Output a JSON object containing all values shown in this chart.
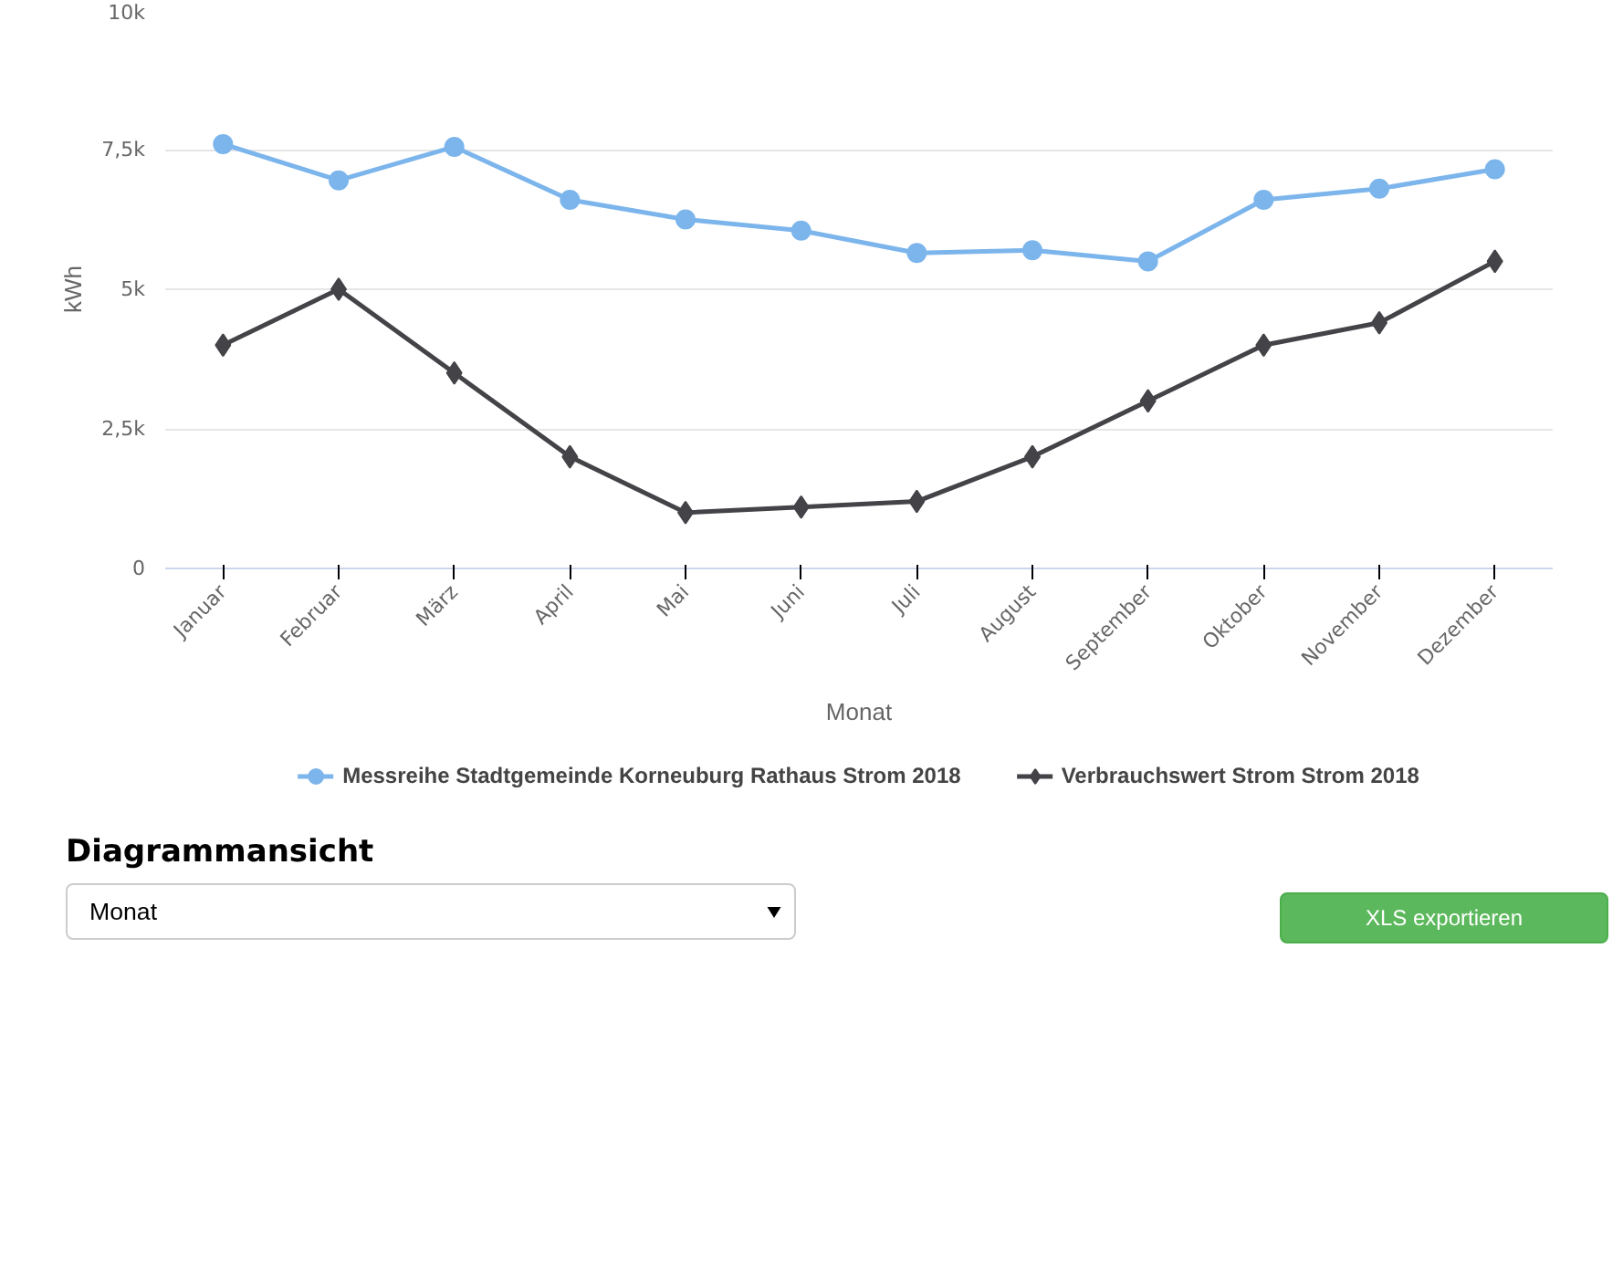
{
  "chart_data": {
    "type": "line",
    "xlabel": "Monat",
    "ylabel": "kWh",
    "categories": [
      "Januar",
      "Februar",
      "März",
      "April",
      "Mai",
      "Juni",
      "Juli",
      "August",
      "September",
      "Oktober",
      "November",
      "Dezember"
    ],
    "series": [
      {
        "name": "Messreihe Stadtgemeinde Korneuburg Rathaus Strom 2018",
        "color": "#7cb5ec",
        "marker": "circle",
        "values": [
          7600,
          6950,
          7550,
          6600,
          6250,
          6050,
          5650,
          5700,
          5500,
          6600,
          6800,
          7150
        ]
      },
      {
        "name": "Verbrauchswert Strom Strom 2018",
        "color": "#434348",
        "marker": "diamond",
        "values": [
          4000,
          5000,
          3500,
          2000,
          1000,
          1100,
          1200,
          2000,
          3000,
          4000,
          4400,
          5500
        ]
      }
    ],
    "ylim": [
      0,
      10000
    ],
    "yticks": [
      0,
      {
        "value": 2500,
        "label": "2,5k"
      },
      {
        "value": 5000,
        "label": "5k"
      },
      {
        "value": 7500,
        "label": "7,5k"
      },
      {
        "value": 10000,
        "label": "10k"
      }
    ],
    "grid": "y",
    "legend": "bottom",
    "line_style": "solid",
    "annotations": [
      "Diagrammansicht",
      "Monat",
      "XLS exportieren"
    ]
  }
}
